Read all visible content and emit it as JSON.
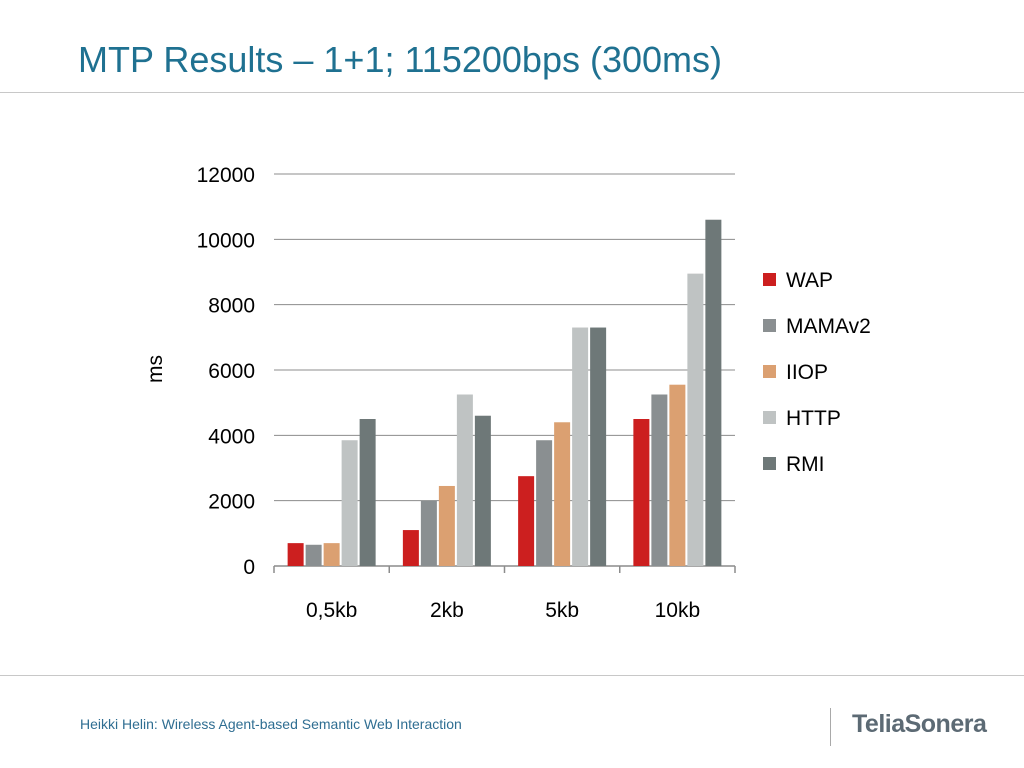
{
  "slide": {
    "title": "MTP Results – 1+1; 115200bps (300ms)",
    "footer": "Heikki Helin: Wireless Agent-based Semantic Web Interaction",
    "logo_text": "TeliaSonera"
  },
  "chart_data": {
    "type": "bar",
    "title": "",
    "xlabel": "",
    "ylabel": "ms",
    "ylim": [
      0,
      12000
    ],
    "yticks": [
      0,
      2000,
      4000,
      6000,
      8000,
      10000,
      12000
    ],
    "grid": true,
    "legend_position": "right",
    "categories": [
      "0,5kb",
      "2kb",
      "5kb",
      "10kb"
    ],
    "series": [
      {
        "name": "WAP",
        "color": "#cc1f1f",
        "values": [
          700,
          1100,
          2750,
          4500
        ]
      },
      {
        "name": "MAMAv2",
        "color": "#8a8f91",
        "values": [
          650,
          2000,
          3850,
          5250
        ]
      },
      {
        "name": "IIOP",
        "color": "#dba071",
        "values": [
          700,
          2450,
          4400,
          5550
        ]
      },
      {
        "name": "HTTP",
        "color": "#bfc3c3",
        "values": [
          3850,
          5250,
          7300,
          8950
        ]
      },
      {
        "name": "RMI",
        "color": "#6e7878",
        "values": [
          4500,
          4600,
          7300,
          10600
        ]
      }
    ]
  }
}
